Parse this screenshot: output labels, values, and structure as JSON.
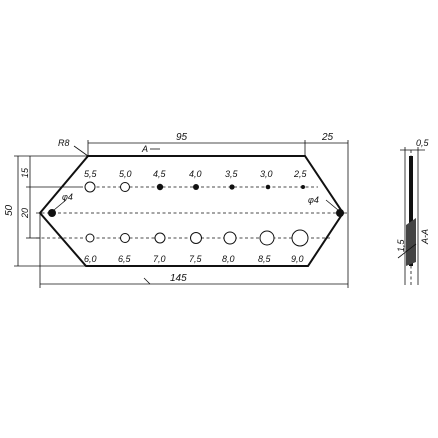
{
  "drawing": {
    "dimensions": {
      "top_length": "95",
      "top_right": "25",
      "overall_length": "145",
      "height": "50",
      "row_offset": "15",
      "row_spacing": "20",
      "thickness": "0,5",
      "corner": "R8",
      "mount_hole_left": "φ4",
      "mount_hole_right": "φ4",
      "section_mark": "A",
      "section_label": "A-A",
      "bend_dim": "1,5"
    },
    "top_row_labels": [
      "5,5",
      "5,0",
      "4,5",
      "4,0",
      "3,5",
      "3,0",
      "2,5"
    ],
    "bottom_row_labels": [
      "6,0",
      "6,5",
      "7,0",
      "7,5",
      "8,0",
      "8,5",
      "9,0"
    ]
  }
}
